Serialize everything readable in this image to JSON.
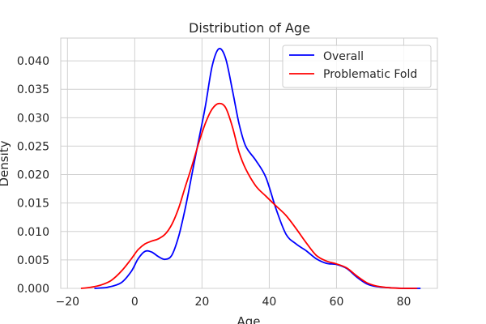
{
  "chart_data": {
    "type": "line",
    "title": "Distribution of Age",
    "xlabel": "Age",
    "ylabel": "Density",
    "xlim": [
      -22,
      90
    ],
    "ylim": [
      0,
      0.044
    ],
    "xticks": [
      -20,
      0,
      20,
      40,
      60,
      80
    ],
    "yticks": [
      0.0,
      0.005,
      0.01,
      0.015,
      0.02,
      0.025,
      0.03,
      0.035,
      0.04
    ],
    "xtick_labels": [
      "−20",
      "0",
      "20",
      "40",
      "60",
      "80"
    ],
    "ytick_labels": [
      "0.000",
      "0.005",
      "0.010",
      "0.015",
      "0.020",
      "0.025",
      "0.030",
      "0.035",
      "0.040"
    ],
    "grid": true,
    "legend_position": "top-right",
    "series": [
      {
        "name": "Overall",
        "color": "#0000ff",
        "points": [
          [
            -12,
            0.0
          ],
          [
            -8,
            0.0002
          ],
          [
            -4,
            0.001
          ],
          [
            -1,
            0.003
          ],
          [
            1,
            0.0052
          ],
          [
            3,
            0.0065
          ],
          [
            5,
            0.0064
          ],
          [
            7,
            0.0056
          ],
          [
            9,
            0.0051
          ],
          [
            11,
            0.0058
          ],
          [
            13,
            0.009
          ],
          [
            15,
            0.014
          ],
          [
            17,
            0.02
          ],
          [
            19,
            0.026
          ],
          [
            21,
            0.032
          ],
          [
            23,
            0.039
          ],
          [
            25,
            0.0421
          ],
          [
            27,
            0.0405
          ],
          [
            29,
            0.035
          ],
          [
            31,
            0.029
          ],
          [
            33,
            0.025
          ],
          [
            36,
            0.0225
          ],
          [
            39,
            0.0195
          ],
          [
            42,
            0.014
          ],
          [
            45,
            0.0095
          ],
          [
            48,
            0.0078
          ],
          [
            51,
            0.0066
          ],
          [
            54,
            0.0052
          ],
          [
            57,
            0.0044
          ],
          [
            60,
            0.0042
          ],
          [
            63,
            0.0035
          ],
          [
            66,
            0.002
          ],
          [
            69,
            0.0008
          ],
          [
            72,
            0.0003
          ],
          [
            76,
            0.0001
          ],
          [
            80,
            0.0
          ],
          [
            85,
            0.0
          ]
        ]
      },
      {
        "name": "Problematic Fold",
        "color": "#ff0000",
        "points": [
          [
            -16,
            0.0
          ],
          [
            -13,
            0.0002
          ],
          [
            -10,
            0.0006
          ],
          [
            -7,
            0.0014
          ],
          [
            -4,
            0.003
          ],
          [
            -1,
            0.0052
          ],
          [
            1,
            0.0068
          ],
          [
            3,
            0.0078
          ],
          [
            5,
            0.0083
          ],
          [
            7,
            0.0087
          ],
          [
            9,
            0.0095
          ],
          [
            11,
            0.0112
          ],
          [
            13,
            0.014
          ],
          [
            15,
            0.0178
          ],
          [
            17,
            0.0215
          ],
          [
            19,
            0.0255
          ],
          [
            21,
            0.029
          ],
          [
            23,
            0.0315
          ],
          [
            25,
            0.0325
          ],
          [
            27,
            0.0318
          ],
          [
            29,
            0.0285
          ],
          [
            31,
            0.024
          ],
          [
            33,
            0.021
          ],
          [
            36,
            0.018
          ],
          [
            39,
            0.0162
          ],
          [
            42,
            0.0145
          ],
          [
            45,
            0.0128
          ],
          [
            48,
            0.0105
          ],
          [
            51,
            0.008
          ],
          [
            54,
            0.0058
          ],
          [
            57,
            0.0048
          ],
          [
            60,
            0.0043
          ],
          [
            63,
            0.0036
          ],
          [
            66,
            0.0022
          ],
          [
            69,
            0.001
          ],
          [
            72,
            0.0004
          ],
          [
            76,
            0.0001
          ],
          [
            80,
            0.0
          ],
          [
            84,
            0.0
          ]
        ]
      }
    ]
  }
}
